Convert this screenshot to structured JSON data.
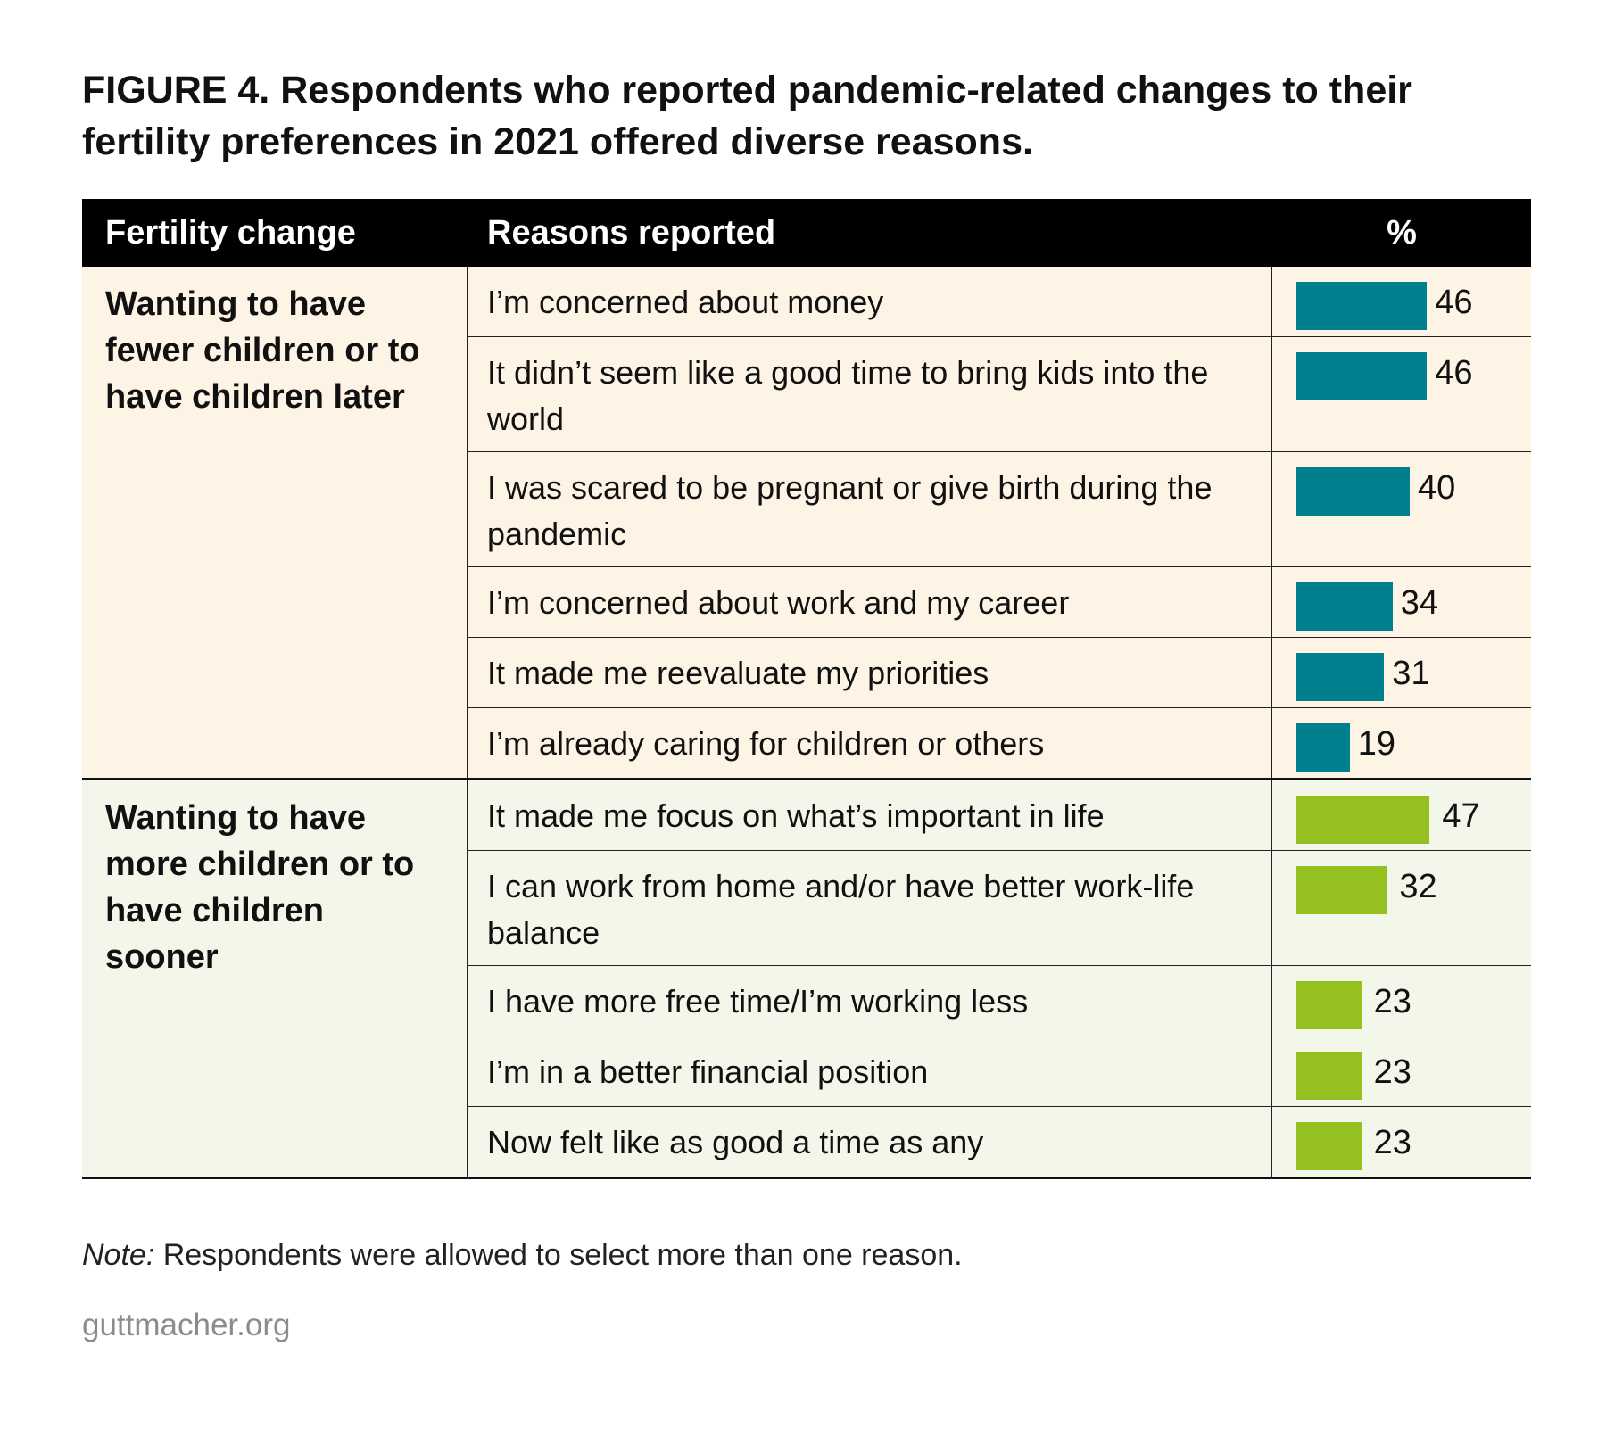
{
  "title": "FIGURE 4. Respondents who reported pandemic-related changes to their fertility preferences in 2021 offered diverse reasons.",
  "headers": {
    "col1": "Fertility change",
    "col2": "Reasons reported",
    "col3": "%"
  },
  "colors": {
    "fewer_bar": "#00808f",
    "more_bar": "#94c11f",
    "fewer_bg": "#fdf4e6",
    "more_bg": "#f3f7ea"
  },
  "chart_data": {
    "type": "bar",
    "orientation": "horizontal",
    "groups": [
      {
        "name": "Wanting to have fewer children or to have children later",
        "color": "#00808f",
        "categories": [
          "I’m concerned about money",
          "It didn’t seem like a good time to bring kids into the world",
          "I was scared to be pregnant or give birth during the pandemic",
          "I’m concerned about work and my career",
          "It made me reevaluate my priorities",
          "I’m already caring for children or others"
        ],
        "values": [
          46,
          46,
          40,
          34,
          31,
          19
        ]
      },
      {
        "name": "Wanting to have more children or to have children sooner",
        "color": "#94c11f",
        "categories": [
          "It made me focus on what’s important in life",
          "I can work from home and/or have better work-life balance",
          "I have more free time/I’m working less",
          "I’m in a better financial position",
          "Now felt like as good a time as any"
        ],
        "values": [
          47,
          32,
          23,
          23,
          23
        ]
      }
    ]
  },
  "note": {
    "label": "Note:",
    "text": " Respondents were allowed to select more than one reason."
  },
  "source": "guttmacher.org"
}
